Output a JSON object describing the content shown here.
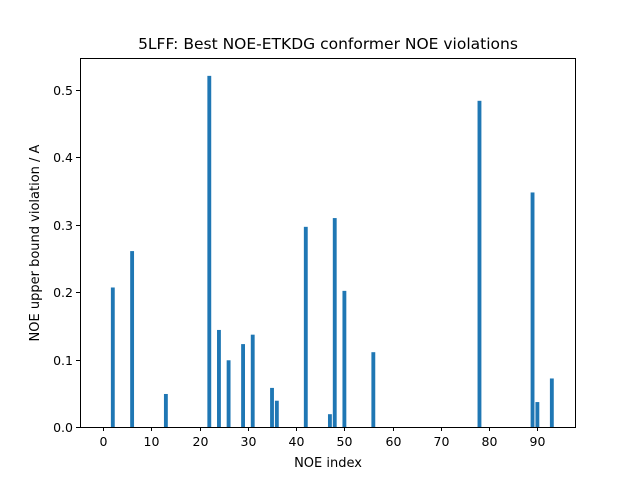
{
  "chart_data": {
    "type": "bar",
    "title": "5LFF: Best NOE-ETKDG conformer NOE violations",
    "xlabel": "NOE index",
    "ylabel": "NOE upper bound violation / A",
    "xlim": [
      -4.8,
      97.8
    ],
    "ylim": [
      0,
      0.5475
    ],
    "xticks": [
      0,
      10,
      20,
      30,
      40,
      50,
      60,
      70,
      80,
      90
    ],
    "yticks": [
      0.0,
      0.1,
      0.2,
      0.3,
      0.4,
      0.5
    ],
    "ytick_labels": [
      "0.0",
      "0.1",
      "0.2",
      "0.3",
      "0.4",
      "0.5"
    ],
    "bar_color": "#1f77b4",
    "grid": false,
    "x": [
      2,
      6,
      13,
      22,
      24,
      26,
      29,
      31,
      35,
      36,
      42,
      47,
      48,
      50,
      56,
      78,
      89,
      90,
      93
    ],
    "values": [
      0.207,
      0.261,
      0.049,
      0.521,
      0.144,
      0.099,
      0.123,
      0.137,
      0.058,
      0.039,
      0.297,
      0.019,
      0.31,
      0.202,
      0.111,
      0.484,
      0.348,
      0.037,
      0.072
    ]
  }
}
